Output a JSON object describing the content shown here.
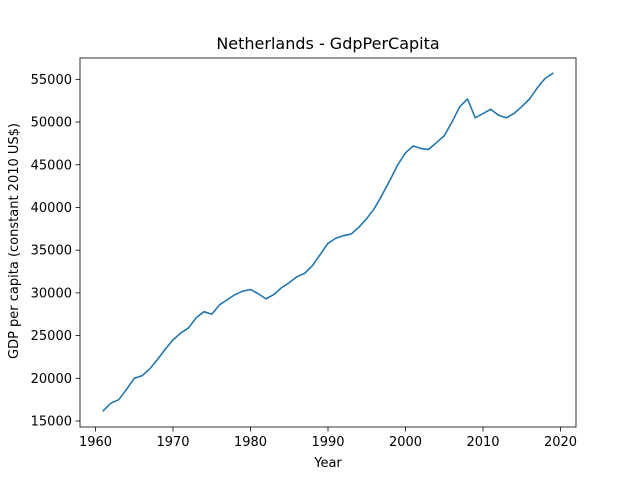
{
  "chart_data": {
    "type": "line",
    "title": "Netherlands - GdpPerCapita",
    "xlabel": "Year",
    "ylabel": "GDP per capita (constant 2010 US$)",
    "xlim": [
      1958,
      2022
    ],
    "ylim": [
      14300,
      57500
    ],
    "xticks": [
      1960,
      1970,
      1980,
      1990,
      2000,
      2010,
      2020
    ],
    "yticks": [
      15000,
      20000,
      25000,
      30000,
      35000,
      40000,
      45000,
      50000,
      55000
    ],
    "grid": false,
    "color": "#1f77b4",
    "series": [
      {
        "x": [
          1961,
          1962,
          1963,
          1964,
          1965,
          1966,
          1967,
          1968,
          1969,
          1970,
          1971,
          1972,
          1973,
          1974,
          1975,
          1976,
          1977,
          1978,
          1979,
          1980,
          1981,
          1982,
          1983,
          1984,
          1985,
          1986,
          1987,
          1988,
          1989,
          1990,
          1991,
          1992,
          1993,
          1994,
          1995,
          1996,
          1997,
          1998,
          1999,
          2000,
          2001,
          2002,
          2003,
          2004,
          2005,
          2006,
          2007,
          2008,
          2009,
          2010,
          2011,
          2012,
          2013,
          2014,
          2015,
          2016,
          2017,
          2018,
          2019
        ],
        "values": [
          16200,
          17100,
          17500,
          18700,
          20000,
          20300,
          21100,
          22200,
          23400,
          24500,
          25300,
          25900,
          27100,
          27800,
          27500,
          28600,
          29200,
          29800,
          30200,
          30400,
          29900,
          29300,
          29800,
          30600,
          31200,
          31900,
          32300,
          33200,
          34500,
          35800,
          36400,
          36700,
          36900,
          37700,
          38700,
          39900,
          41500,
          43200,
          45000,
          46400,
          47200,
          46900,
          46800,
          47600,
          48400,
          50000,
          51800,
          52700,
          50500,
          51000,
          51500,
          50800,
          50500,
          51000,
          51800,
          52700,
          54000,
          55100,
          55700
        ]
      }
    ]
  }
}
